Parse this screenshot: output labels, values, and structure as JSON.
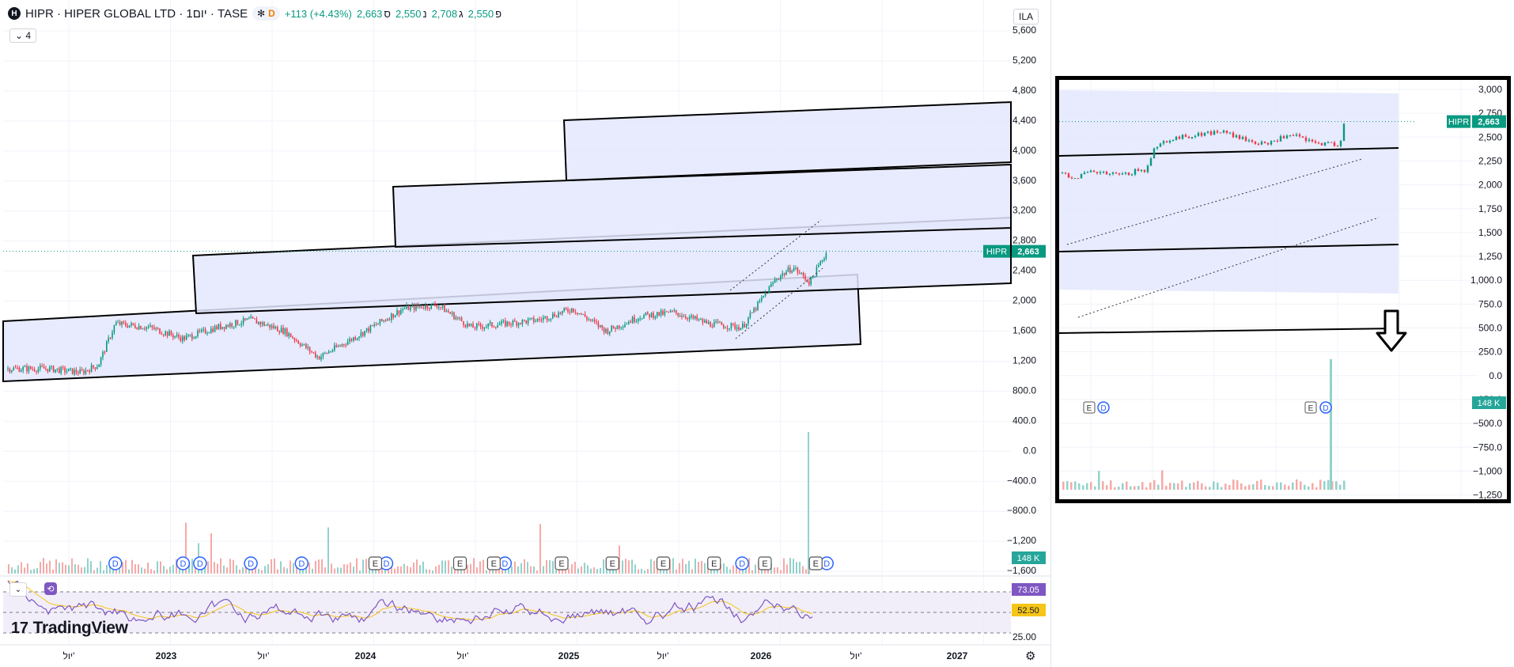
{
  "header": {
    "logo_letter": "H",
    "title": "HIPR · HIPER GLOBAL LTD · 1יום · TASE",
    "badge_snowflake": "✻",
    "badge_d": "D",
    "change": "+113 (+4.43%)",
    "ohlc": [
      {
        "label": "ס",
        "value": "2,663"
      },
      {
        "label": "נ",
        "value": "2,550"
      },
      {
        "label": "ג",
        "value": "2,708"
      },
      {
        "label": "פ",
        "value": "2,550"
      }
    ]
  },
  "collapse_button": "4",
  "currency_button": "ILA",
  "branding": {
    "logo_text": "TradingView",
    "logo_mark": "17"
  },
  "icons": {
    "settings": "gear-icon",
    "collapse": "chevron-down-icon",
    "sync": "sync-icon",
    "arrow": "arrow-down-icon"
  },
  "colors": {
    "up": "#089981",
    "down": "#f23645",
    "rsi": "#7e57c2",
    "rsi_ma": "#f5c518",
    "channel_fill": "#e3e8fd",
    "event_d": "#2962ff"
  },
  "chart_data": [
    {
      "type": "candlestick",
      "symbol": "HIPR",
      "last_price_label": "2,663",
      "volume_label": "148 K",
      "x_tick_labels": [
        "יול'",
        "2023",
        "יול'",
        "2024",
        "יול'",
        "2025",
        "יול'",
        "2026",
        "יול'",
        "2027"
      ],
      "y_tick_labels": [
        "5,600",
        "5,200",
        "4,800",
        "4,400",
        "4,000",
        "3,600",
        "3,200",
        "2,800",
        "2,400",
        "2,000",
        "1,600",
        "1,200",
        "800.0",
        "400.0",
        "0.0",
        "−400.0",
        "−800.0",
        "−1,200",
        "−1,600"
      ],
      "ylim": [
        -1600,
        5600
      ],
      "close_series_approx": [
        {
          "date": "2022-06",
          "close": 1100
        },
        {
          "date": "2022-08",
          "close": 1050
        },
        {
          "date": "2022-09",
          "close": 1150
        },
        {
          "date": "2022-10",
          "close": 1700
        },
        {
          "date": "2022-12",
          "close": 1650
        },
        {
          "date": "2023-02",
          "close": 1500
        },
        {
          "date": "2023-04",
          "close": 1650
        },
        {
          "date": "2023-06",
          "close": 1750
        },
        {
          "date": "2023-08",
          "close": 1600
        },
        {
          "date": "2023-10",
          "close": 1250
        },
        {
          "date": "2023-12",
          "close": 1500
        },
        {
          "date": "2024-03",
          "close": 1900
        },
        {
          "date": "2024-05",
          "close": 1950
        },
        {
          "date": "2024-07",
          "close": 1650
        },
        {
          "date": "2024-09",
          "close": 1700
        },
        {
          "date": "2024-11",
          "close": 1750
        },
        {
          "date": "2025-01",
          "close": 1900
        },
        {
          "date": "2025-03",
          "close": 1600
        },
        {
          "date": "2025-05",
          "close": 1800
        },
        {
          "date": "2025-07",
          "close": 1850
        },
        {
          "date": "2025-09",
          "close": 1700
        },
        {
          "date": "2025-11",
          "close": 1650
        },
        {
          "date": "2026-01",
          "close": 2300
        },
        {
          "date": "2026-02",
          "close": 2450
        },
        {
          "date": "2026-03",
          "close": 2250
        },
        {
          "date": "2026-04",
          "close": 2663
        }
      ],
      "events_d": [
        "2022-10",
        "2023-02",
        "2023-03",
        "2023-06",
        "2023-09",
        "2024-02",
        "2024-09",
        "2025-11",
        "2026-04"
      ],
      "events_e": [
        "2024-02",
        "2024-07",
        "2024-09",
        "2025-01",
        "2025-04",
        "2025-07",
        "2025-10",
        "2026-01",
        "2026-04"
      ]
    },
    {
      "type": "line",
      "name": "RSI",
      "rsi_value_label": "73.05",
      "rsi_ma_label": "52.50",
      "level_label": "25.00"
    },
    {
      "type": "candlestick",
      "name": "inset-zoom",
      "symbol": "HIPR",
      "last_price_label": "2,663",
      "volume_label": "148 K",
      "y_tick_labels": [
        "3,000",
        "2,750",
        "2,500",
        "2,250",
        "2,000",
        "1,750",
        "1,500",
        "1,250",
        "1,000.0",
        "750.0",
        "500.0",
        "250.0",
        "0.0",
        "−250.0",
        "−500.0",
        "−750.0",
        "−1,000",
        "−1,250"
      ],
      "ylim": [
        -1250,
        3000
      ],
      "event_labels": [
        "E",
        "D",
        "E",
        "D"
      ]
    }
  ]
}
